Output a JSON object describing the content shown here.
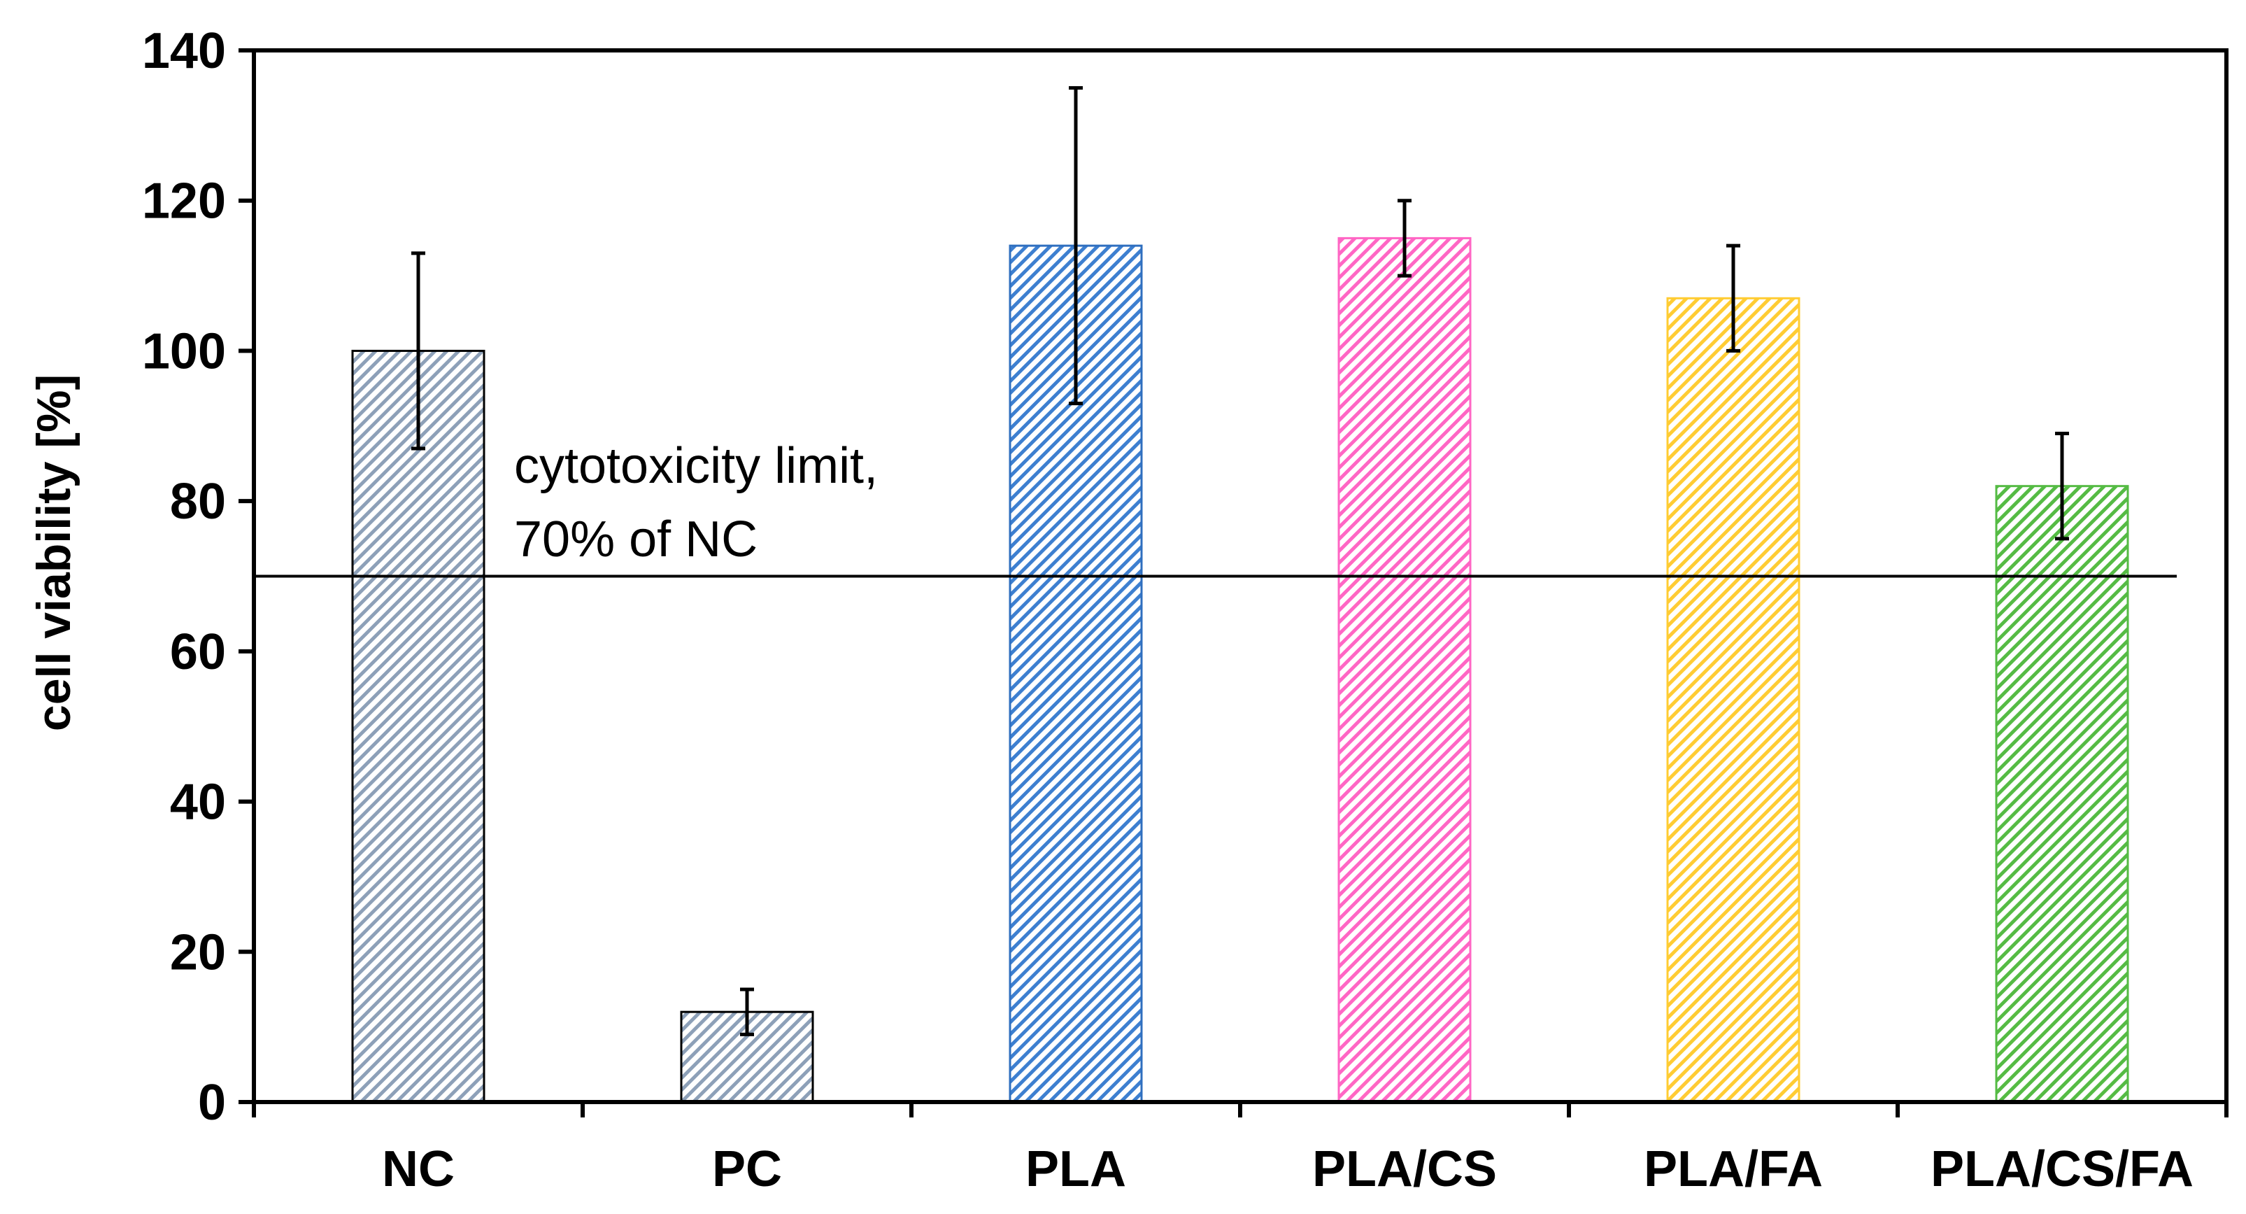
{
  "chart_data": {
    "type": "bar",
    "title": "",
    "xlabel": "",
    "ylabel": "cell viability [%]",
    "ylim": [
      0,
      140
    ],
    "yticks": [
      0,
      20,
      40,
      60,
      80,
      100,
      120,
      140
    ],
    "grid": false,
    "categories": [
      "NC",
      "PC",
      "PLA",
      "PLA/CS",
      "PLA/FA",
      "PLA/CS/FA"
    ],
    "values": [
      100,
      12,
      114,
      115,
      107,
      82
    ],
    "errors": [
      13,
      3,
      21,
      5,
      7,
      7
    ],
    "bar_colors": [
      "#8da0b8",
      "#8da0b8",
      "#3d7fd0",
      "#ff66c4",
      "#ffcc33",
      "#55bb44"
    ],
    "bar_edge_colors": [
      "#000000",
      "#000000",
      "#2f6fbf",
      "#ff66c4",
      "#ffcc33",
      "#55bb44"
    ],
    "reference_line": {
      "value": 70,
      "label_line1": "cytotoxicity limit,",
      "label_line2": "70% of NC"
    }
  }
}
